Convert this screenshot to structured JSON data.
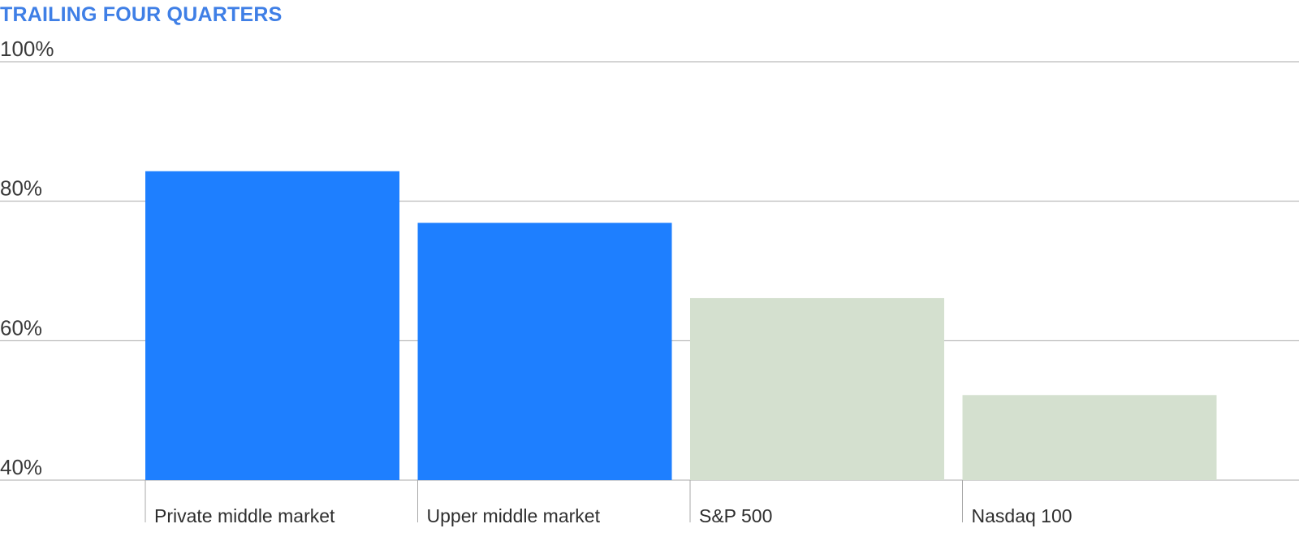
{
  "chart_data": {
    "type": "bar",
    "title": "TRAILING FOUR QUARTERS",
    "categories": [
      "Private middle market",
      "Upper middle market",
      "S&P 500",
      "Nasdaq 100"
    ],
    "values": [
      84.3,
      76.9,
      66.1,
      52.2
    ],
    "ylim": [
      40,
      100
    ],
    "yticks": [
      100,
      80,
      60,
      40
    ],
    "ytick_labels": [
      "100%",
      "80%",
      "60%",
      "40%"
    ],
    "xlabel": "",
    "ylabel": "",
    "grid": true,
    "bar_colors": [
      "#1e7fff",
      "#1e7fff",
      "#d4e0cf",
      "#d4e0cf"
    ],
    "title_color": "#3f7fe6",
    "gridline_color": "#a9a9a9"
  }
}
